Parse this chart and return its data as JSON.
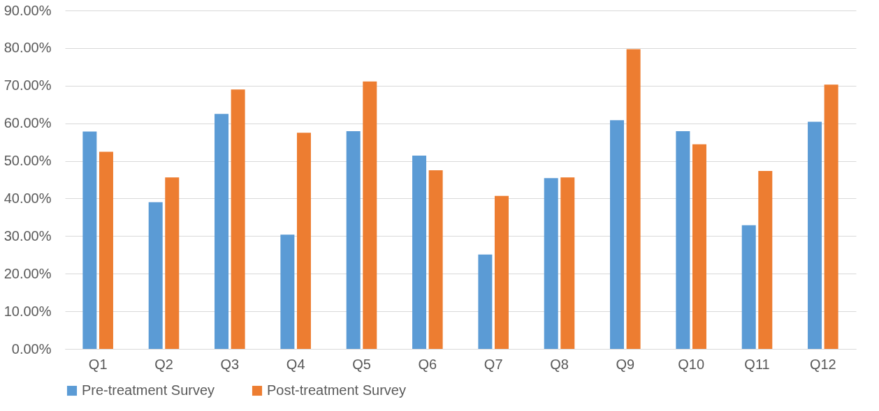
{
  "chart_data": {
    "type": "bar",
    "categories": [
      "Q1",
      "Q2",
      "Q3",
      "Q4",
      "Q5",
      "Q6",
      "Q7",
      "Q8",
      "Q9",
      "Q10",
      "Q11",
      "Q12"
    ],
    "series": [
      {
        "name": "Pre-treatment Survey",
        "color": "#5b9bd5",
        "values": [
          57.8,
          39.0,
          62.5,
          30.4,
          57.9,
          51.4,
          25.1,
          45.4,
          60.8,
          57.9,
          32.9,
          60.4
        ]
      },
      {
        "name": "Post-treatment Survey",
        "color": "#ed7d31",
        "values": [
          52.4,
          45.6,
          69.0,
          57.5,
          71.1,
          47.5,
          40.7,
          45.6,
          79.7,
          54.4,
          47.3,
          70.3
        ]
      }
    ],
    "ylim": [
      0,
      90
    ],
    "yticks": [
      {
        "value": 0,
        "label": "0.00%"
      },
      {
        "value": 10,
        "label": "10.00%"
      },
      {
        "value": 20,
        "label": "20.00%"
      },
      {
        "value": 30,
        "label": "30.00%"
      },
      {
        "value": 40,
        "label": "40.00%"
      },
      {
        "value": 50,
        "label": "50.00%"
      },
      {
        "value": 60,
        "label": "60.00%"
      },
      {
        "value": 70,
        "label": "70.00%"
      },
      {
        "value": 80,
        "label": "80.00%"
      },
      {
        "value": 90,
        "label": "90.00%"
      }
    ],
    "grid": "y",
    "legend": "bottom"
  }
}
